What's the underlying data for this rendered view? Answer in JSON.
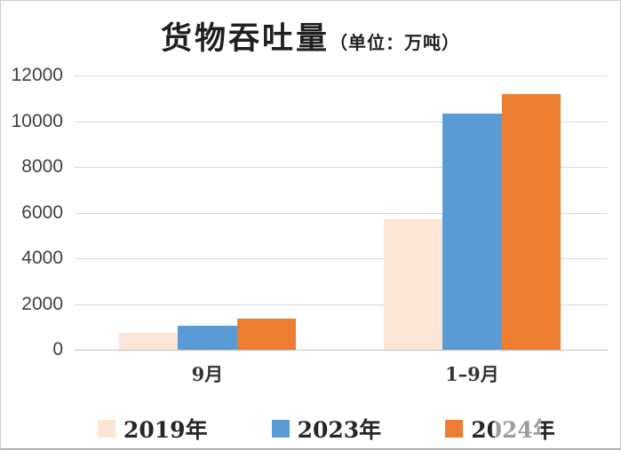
{
  "frame": {
    "background": "#ffffff",
    "border_color": "#cdcdcd"
  },
  "chart_data": {
    "type": "bar",
    "title": "货物吞吐量",
    "subtitle": "（单位：万吨）",
    "categories": [
      "9月",
      "1–9月"
    ],
    "series": [
      {
        "name": "2019年",
        "color": "#FBE5D6",
        "values": [
          750,
          5700
        ]
      },
      {
        "name": "2023年",
        "color": "#5B9BD5",
        "values": [
          1050,
          10350
        ]
      },
      {
        "name": "2024年",
        "color": "#ED7D31",
        "values": [
          1350,
          11200
        ]
      }
    ],
    "ylim": [
      0,
      12000
    ],
    "yticks": [
      0,
      2000,
      4000,
      6000,
      8000,
      10000,
      12000
    ],
    "grid": true,
    "gridline_color": "#D9D9D9",
    "axis_line_color": "#BFBFBF",
    "tick_label_color": "#404040",
    "legend_position": "bottom",
    "legend_labels": [
      "2019年",
      "2023年",
      "2024年"
    ]
  }
}
